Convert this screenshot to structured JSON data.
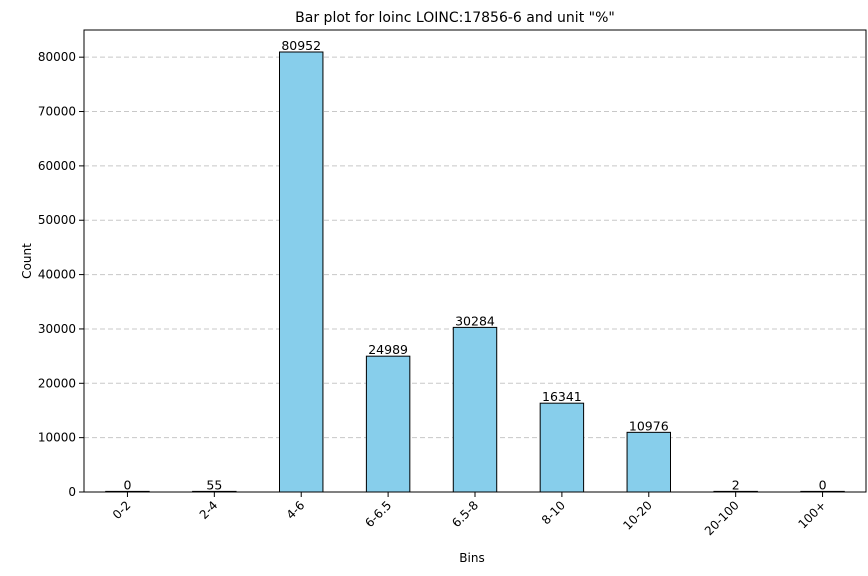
{
  "chart_data": {
    "type": "bar",
    "title": "Bar plot for loinc LOINC:17856-6 and unit \"%\"",
    "xlabel": "Bins",
    "ylabel": "Count",
    "categories": [
      "0-2",
      "2-4",
      "4-6",
      "6-6.5",
      "6.5-8",
      "8-10",
      "10-20",
      "20-100",
      "100+"
    ],
    "values": [
      0,
      55,
      80952,
      24989,
      30284,
      16341,
      10976,
      2,
      0
    ],
    "data_labels": [
      "0",
      "55",
      "80952",
      "24989",
      "30284",
      "16341",
      "10976",
      "2",
      "0"
    ],
    "ylim": [
      0,
      85000
    ],
    "y_ticks": [
      0,
      10000,
      20000,
      30000,
      40000,
      50000,
      60000,
      70000,
      80000
    ],
    "y_tick_labels": [
      "0",
      "10000",
      "20000",
      "30000",
      "40000",
      "50000",
      "60000",
      "70000",
      "80000"
    ],
    "grid": "horizontal dashed",
    "legend": "none",
    "x_tick_rotation_deg": 45,
    "colors": {
      "bar_fill": "#87ceeb",
      "bar_edge": "#000000",
      "grid": "#c8c8c8"
    }
  }
}
